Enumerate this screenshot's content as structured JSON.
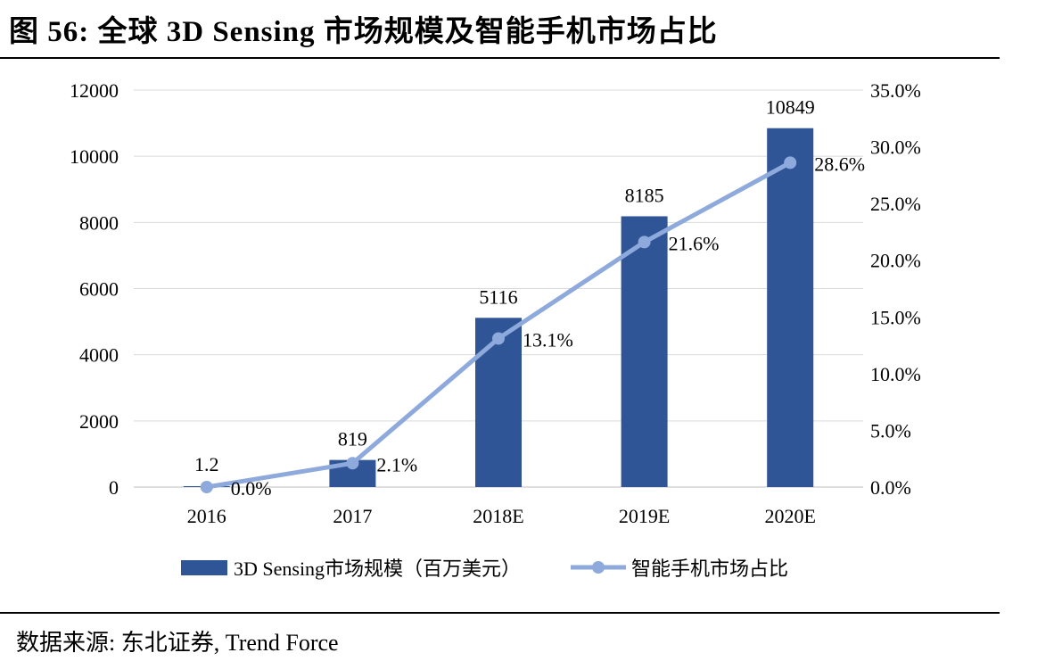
{
  "figure_title": "图 56: 全球 3D Sensing 市场规模及智能手机市场占比",
  "source": "数据来源: 东北证券, Trend Force",
  "chart_data": {
    "type": "bar",
    "categories": [
      "2016",
      "2017",
      "2018E",
      "2019E",
      "2020E"
    ],
    "series": [
      {
        "name": "3D Sensing市场规模（百万美元）",
        "type": "bar",
        "axis": "left",
        "color": "#2F5597",
        "values": [
          1.2,
          819,
          5116,
          8185,
          10849
        ],
        "labels": [
          "1.2",
          "819",
          "5116",
          "8185",
          "10849"
        ]
      },
      {
        "name": "智能手机市场占比",
        "type": "line",
        "axis": "right",
        "color": "#8EA9DB",
        "values": [
          0.0,
          2.1,
          13.1,
          21.6,
          28.6
        ],
        "labels": [
          "0.0%",
          "2.1%",
          "13.1%",
          "21.6%",
          "28.6%"
        ]
      }
    ],
    "y_left": {
      "min": 0,
      "max": 12000,
      "ticks": [
        "0",
        "2000",
        "4000",
        "6000",
        "8000",
        "10000",
        "12000"
      ]
    },
    "y_right": {
      "min": 0,
      "max": 35,
      "ticks": [
        "0.0%",
        "5.0%",
        "10.0%",
        "15.0%",
        "20.0%",
        "25.0%",
        "30.0%",
        "35.0%"
      ]
    },
    "grid": true,
    "legend_position": "bottom"
  }
}
